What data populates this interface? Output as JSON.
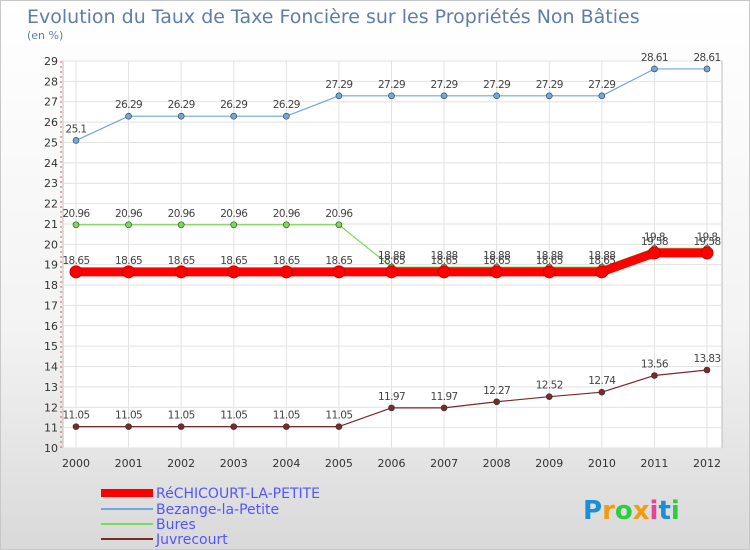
{
  "chart_data": {
    "type": "line",
    "title": "Evolution du Taux de Taxe Foncière sur les Propriétés Non Bâties",
    "subtitle": "(en %)",
    "ylim": [
      10,
      29
    ],
    "yticks": [
      "10",
      "11",
      "12",
      "13",
      "14",
      "15",
      "16",
      "17",
      "18",
      "19",
      "20",
      "21",
      "22",
      "23",
      "24",
      "25",
      "26",
      "27",
      "28",
      "29"
    ],
    "categories": [
      "2000",
      "2001",
      "2002",
      "2003",
      "2004",
      "2005",
      "2006",
      "2007",
      "2008",
      "2009",
      "2010",
      "2011",
      "2012"
    ],
    "grid": true,
    "series": [
      {
        "name": "RéCHICOURT-LA-PETITE",
        "color": "#ff0000",
        "values": [
          18.65,
          18.65,
          18.65,
          18.65,
          18.65,
          18.65,
          18.65,
          18.65,
          18.65,
          18.65,
          18.65,
          19.58,
          19.58
        ],
        "labels": [
          "18.65",
          "18.65",
          "18.65",
          "18.65",
          "18.65",
          "18.65",
          "18.65",
          "18.65",
          "18.65",
          "18.65",
          "18.65",
          "19.58",
          "19.58"
        ]
      },
      {
        "name": "Bezange-la-Petite",
        "color": "#6fa8dc",
        "values": [
          25.1,
          26.29,
          26.29,
          26.29,
          26.29,
          27.29,
          27.29,
          27.29,
          27.29,
          27.29,
          27.29,
          28.61,
          28.61
        ],
        "labels": [
          "25.1",
          "26.29",
          "26.29",
          "26.29",
          "26.29",
          "27.29",
          "27.29",
          "27.29",
          "27.29",
          "27.29",
          "27.29",
          "28.61",
          "28.61"
        ]
      },
      {
        "name": "Bures",
        "color": "#7ed957",
        "values": [
          20.96,
          20.96,
          20.96,
          20.96,
          20.96,
          20.96,
          18.88,
          18.88,
          18.88,
          18.88,
          18.88,
          19.8,
          19.8
        ],
        "labels": [
          "20.96",
          "20.96",
          "20.96",
          "20.96",
          "20.96",
          "20.96",
          "18.88",
          "18.88",
          "18.88",
          "18.88",
          "18.88",
          "19.8",
          "19.8"
        ]
      },
      {
        "name": "Juvrecourt",
        "color": "#7a2a2a",
        "values": [
          11.05,
          11.05,
          11.05,
          11.05,
          11.05,
          11.05,
          11.97,
          11.97,
          12.27,
          12.52,
          12.74,
          13.56,
          13.83
        ],
        "labels": [
          "11.05",
          "11.05",
          "11.05",
          "11.05",
          "11.05",
          "11.05",
          "11.97",
          "11.97",
          "12.27",
          "12.52",
          "12.74",
          "13.56",
          "13.83"
        ]
      }
    ]
  },
  "legend_text_color": "#5555ff",
  "title_color": "#5d7ea8",
  "logo": {
    "text": "Proxiti",
    "colors": [
      "#1a8fd6",
      "#f39c12",
      "#2ecc40",
      "#f39c12",
      "#e84393",
      "#1a8fd6",
      "#2ecc40"
    ]
  }
}
